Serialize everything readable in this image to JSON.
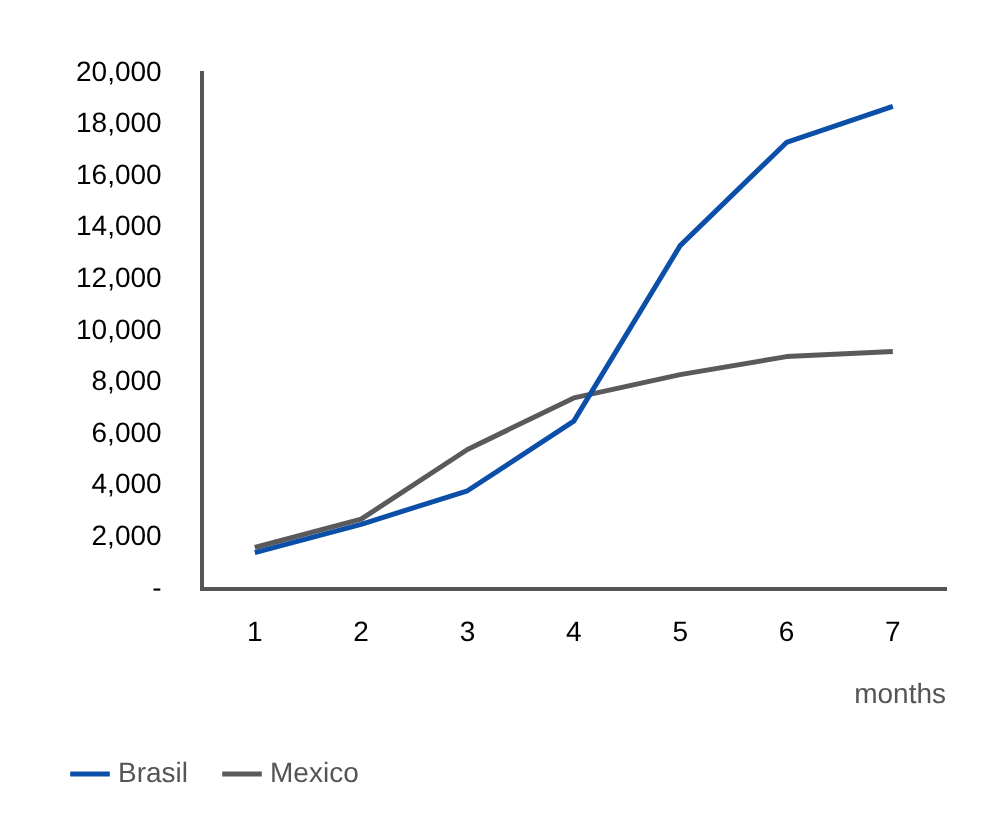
{
  "chart_data": {
    "type": "line",
    "xlabel": "months",
    "categories": [
      "1",
      "2",
      "3",
      "4",
      "5",
      "6",
      "7"
    ],
    "series": [
      {
        "name": "Brasil",
        "color": "#0b4fa8",
        "values": [
          1400,
          2500,
          3800,
          6500,
          13300,
          17300,
          18700
        ]
      },
      {
        "name": "Mexico",
        "color": "#5a5a5c",
        "values": [
          1600,
          2700,
          5400,
          7400,
          8300,
          9000,
          9200
        ]
      }
    ],
    "ylim": [
      0,
      20000
    ],
    "yticks": [
      {
        "value": 0,
        "label": "-"
      },
      {
        "value": 2000,
        "label": "2,000"
      },
      {
        "value": 4000,
        "label": "4,000"
      },
      {
        "value": 6000,
        "label": "6,000"
      },
      {
        "value": 8000,
        "label": "8,000"
      },
      {
        "value": 10000,
        "label": "10,000"
      },
      {
        "value": 12000,
        "label": "12,000"
      },
      {
        "value": 14000,
        "label": "14,000"
      },
      {
        "value": 16000,
        "label": "16,000"
      },
      {
        "value": 18000,
        "label": "18,000"
      },
      {
        "value": 20000,
        "label": "20,000"
      }
    ],
    "grid": false,
    "legend": "bottom left",
    "marker": "none",
    "line_style": "solid"
  }
}
